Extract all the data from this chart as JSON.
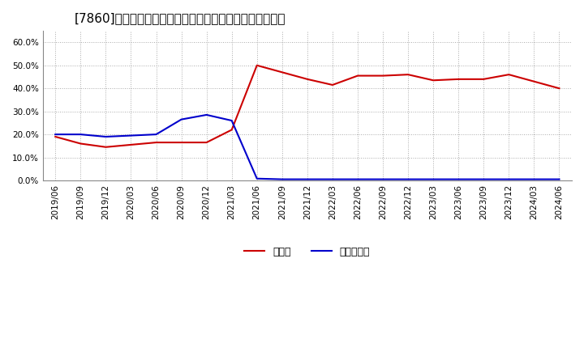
{
  "title": "[7860]　現顕金、有利子負債の総資産に対する比率の推移",
  "cash_dates": [
    "2019/06",
    "2019/09",
    "2019/12",
    "2020/03",
    "2020/06",
    "2020/09",
    "2020/12",
    "2021/03",
    "2021/06",
    "2021/09",
    "2021/12",
    "2022/03",
    "2022/06",
    "2022/09",
    "2022/12",
    "2023/03",
    "2023/06",
    "2023/09",
    "2023/12",
    "2024/03",
    "2024/06"
  ],
  "cash_values": [
    0.19,
    0.16,
    0.145,
    0.155,
    0.165,
    0.165,
    0.165,
    0.22,
    0.5,
    0.47,
    0.44,
    0.415,
    0.455,
    0.455,
    0.46,
    0.435,
    0.44,
    0.44,
    0.46,
    0.43,
    0.4
  ],
  "debt_dates": [
    "2019/06",
    "2019/09",
    "2019/12",
    "2020/03",
    "2020/06",
    "2020/09",
    "2020/12",
    "2021/03",
    "2021/06",
    "2021/09",
    "2021/12",
    "2022/03",
    "2022/06",
    "2022/09",
    "2022/12",
    "2023/03",
    "2023/06",
    "2023/09",
    "2023/12",
    "2024/03",
    "2024/06"
  ],
  "debt_values": [
    0.2,
    0.2,
    0.19,
    0.195,
    0.2,
    0.265,
    0.285,
    0.26,
    0.008,
    0.005,
    0.005,
    0.005,
    0.005,
    0.005,
    0.005,
    0.005,
    0.005,
    0.005,
    0.005,
    0.005,
    0.005
  ],
  "cash_color": "#cc0000",
  "debt_color": "#0000cc",
  "cash_label": "現顕金",
  "debt_label": "有利子負債",
  "ylim": [
    0.0,
    0.65
  ],
  "yticks": [
    0.0,
    0.1,
    0.2,
    0.3,
    0.4,
    0.5,
    0.6
  ],
  "background_color": "#ffffff",
  "plot_background_color": "#ffffff",
  "grid_color": "#aaaaaa",
  "title_fontsize": 11,
  "axis_label_fontsize": 7.5,
  "legend_fontsize": 9
}
